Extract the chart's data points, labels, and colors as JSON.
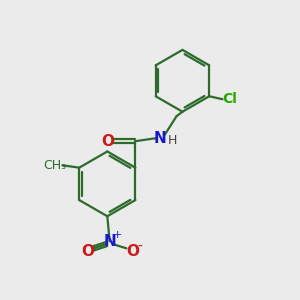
{
  "bg_color": "#ebebeb",
  "bond_color": "#2d6b2d",
  "nitrogen_color": "#1a1acc",
  "oxygen_color": "#cc1a1a",
  "chlorine_color": "#22aa00",
  "lw": 1.6,
  "dbo": 0.06,
  "figsize": [
    3.0,
    3.0
  ],
  "dpi": 100,
  "xlim": [
    0,
    10
  ],
  "ylim": [
    0,
    10
  ]
}
